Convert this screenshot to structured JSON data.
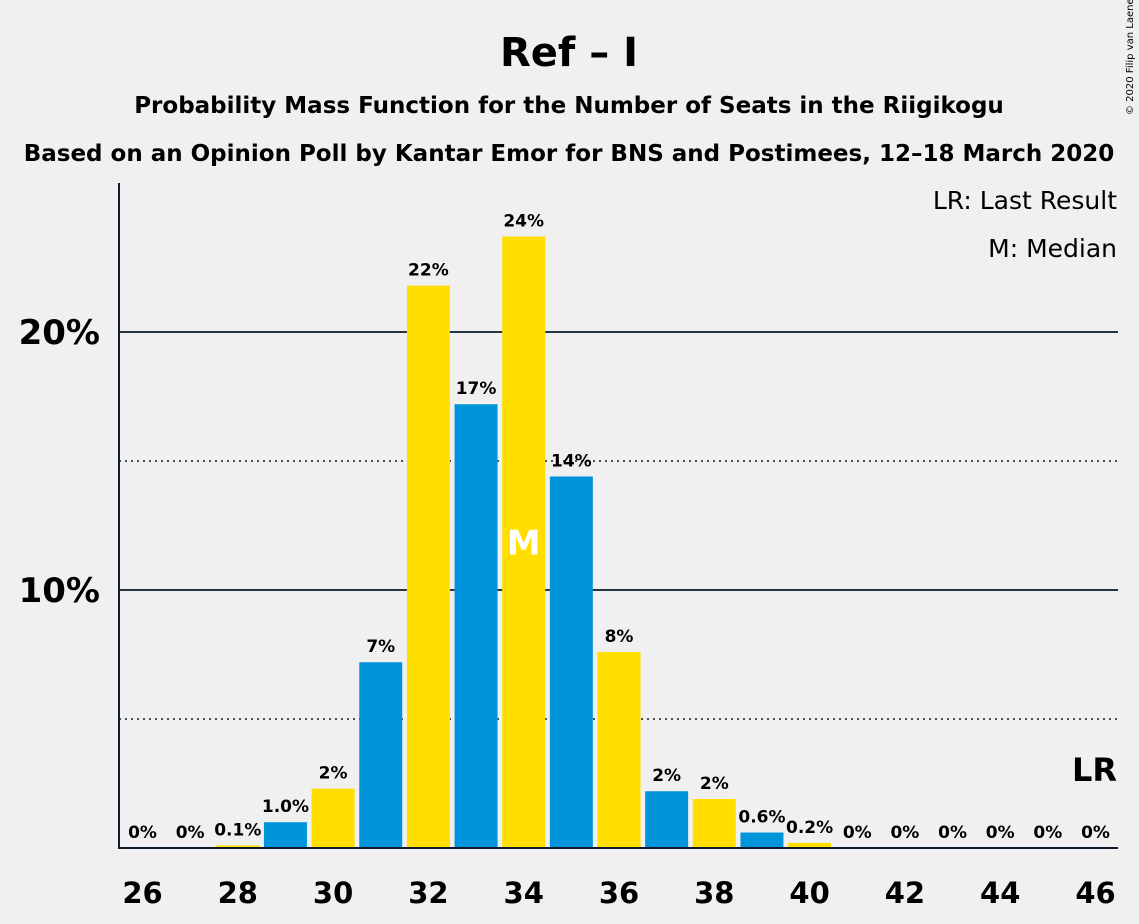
{
  "title": "Ref – I",
  "subtitle1": "Probability Mass Function for the Number of Seats in the Riigikogu",
  "subtitle2": "Based on an Opinion Poll by Kantar Emor for BNS and Postimees, 12–18 March 2020",
  "legend": {
    "lr": "LR: Last Result",
    "median": "M: Median"
  },
  "credit": "© 2020 Filip van Laenen",
  "colors": {
    "blue": "#0095db",
    "yellow": "#ffde00",
    "text": "#0d1b2a",
    "background": "#f0f0f0"
  },
  "chart_data": {
    "type": "bar",
    "x": [
      26,
      27,
      28,
      29,
      30,
      31,
      32,
      33,
      34,
      35,
      36,
      37,
      38,
      39,
      40,
      41,
      42,
      43,
      44,
      45,
      46
    ],
    "values": [
      0,
      0,
      0.1,
      1.0,
      2.3,
      7.2,
      21.8,
      17.2,
      23.7,
      14.4,
      7.6,
      2.2,
      1.9,
      0.6,
      0.2,
      0,
      0,
      0,
      0,
      0,
      0
    ],
    "labels": [
      "0%",
      "0%",
      "0.1%",
      "1.0%",
      "2%",
      "7%",
      "22%",
      "17%",
      "24%",
      "14%",
      "8%",
      "2%",
      "2%",
      "0.6%",
      "0.2%",
      "0%",
      "0%",
      "0%",
      "0%",
      "0%",
      "0%"
    ],
    "xticks": [
      26,
      28,
      30,
      32,
      34,
      36,
      38,
      40,
      42,
      44,
      46
    ],
    "xtick_labels": [
      "26",
      "28",
      "30",
      "32",
      "34",
      "36",
      "38",
      "40",
      "42",
      "44",
      "46"
    ],
    "ytick_labels": [
      {
        "value": 10,
        "label": "10%"
      },
      {
        "value": 20,
        "label": "20%"
      }
    ],
    "dotted_lines": [
      5,
      15
    ],
    "ylim": [
      0,
      26.5
    ],
    "median_seat": 34,
    "median_label": "M",
    "last_result_seat": 46,
    "last_result_label": "LR",
    "units": "%"
  }
}
